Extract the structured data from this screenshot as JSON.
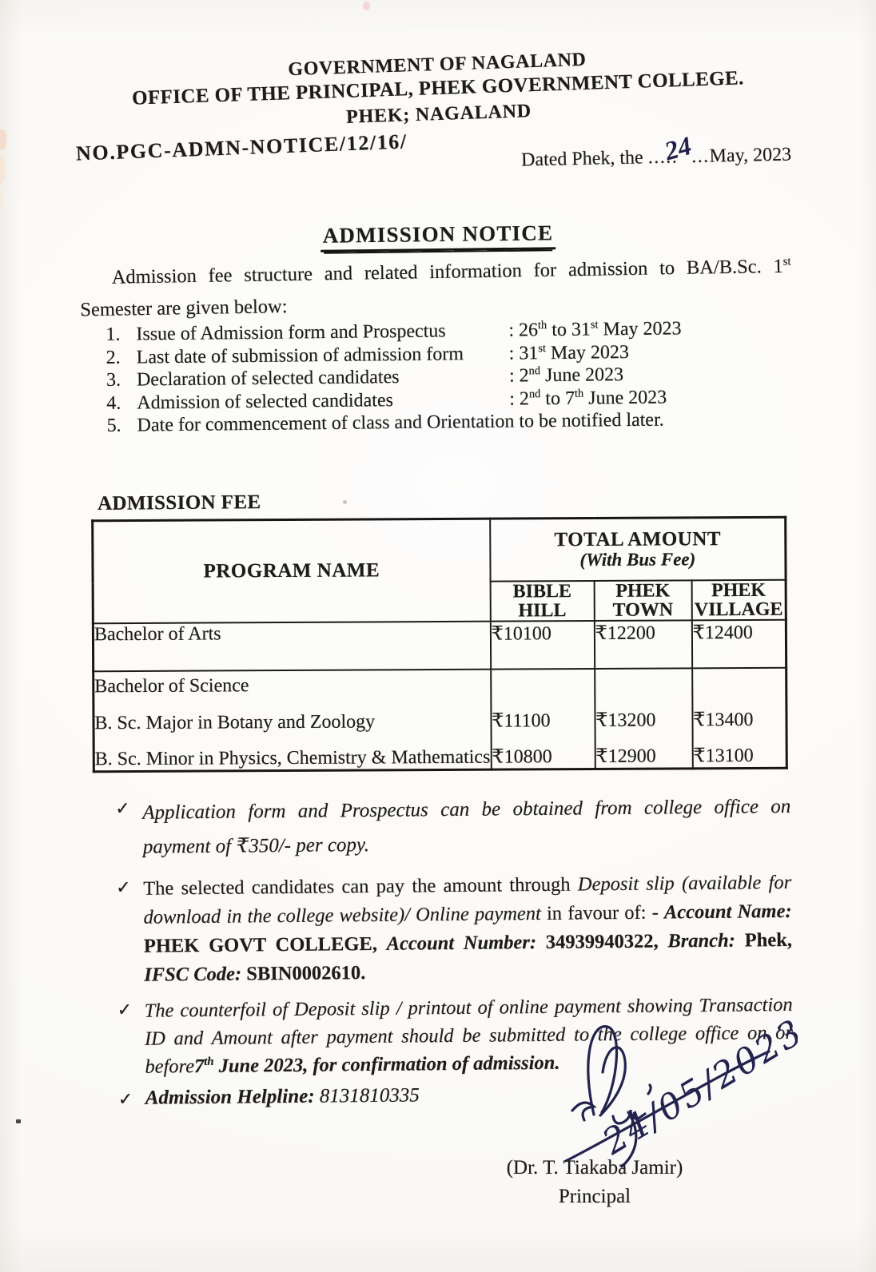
{
  "document": {
    "header": {
      "line1": "GOVERNMENT OF NAGALAND",
      "line2": "OFFICE OF THE PRINCIPAL, PHEK GOVERNMENT COLLEGE.",
      "line3": "PHEK; NAGALAND"
    },
    "reference": {
      "number": "NO.PGC-ADMN-NOTICE/12/16/",
      "date_prefix": "Dated Phek, the ",
      "date_dots_before": ".....",
      "date_day_handwritten": "24",
      "date_dots_after": "...",
      "date_suffix": "May, 2023"
    },
    "title": "ADMISSION NOTICE",
    "intro": [
      {
        "t": "Admission fee structure and related information for admission to BA/B.Sc. 1"
      },
      {
        "t": "st",
        "s": "sup"
      },
      {
        "t": " Semester are given below:"
      }
    ],
    "schedule": [
      {
        "num": "1.",
        "label": "Issue of Admission form and Prospectus",
        "value": [
          {
            "t": ": 26"
          },
          {
            "t": "th",
            "s": "sup"
          },
          {
            "t": " to 31"
          },
          {
            "t": "st",
            "s": "sup"
          },
          {
            "t": " May 2023"
          }
        ]
      },
      {
        "num": "2.",
        "label": "Last date of submission of admission form",
        "value": [
          {
            "t": ": 31"
          },
          {
            "t": "st",
            "s": "sup"
          },
          {
            "t": " May 2023"
          }
        ]
      },
      {
        "num": "3.",
        "label": "Declaration of selected candidates",
        "value": [
          {
            "t": ": 2"
          },
          {
            "t": "nd",
            "s": "sup"
          },
          {
            "t": " June 2023"
          }
        ]
      },
      {
        "num": "4.",
        "label": "Admission of selected candidates",
        "value": [
          {
            "t": ": 2"
          },
          {
            "t": "nd",
            "s": "sup"
          },
          {
            "t": " to 7"
          },
          {
            "t": "th",
            "s": "sup"
          },
          {
            "t": " June 2023"
          }
        ]
      },
      {
        "num": "5.",
        "label": "Date for commencement of class and Orientation to be notified later.",
        "value": []
      }
    ],
    "fee_section": {
      "heading": "ADMISSION FEE",
      "table": {
        "program_header": "PROGRAM NAME",
        "amount_header": "TOTAL AMOUNT",
        "amount_subheader": "(With Bus Fee)",
        "location_headers": [
          "BIBLE\nHILL",
          "PHEK\nTOWN",
          "PHEK\nVILLAGE"
        ],
        "row_arts": {
          "program": "Bachelor of Arts",
          "values": [
            "₹10100",
            "₹12200",
            "₹12400"
          ]
        },
        "row_science": {
          "group_label": "Bachelor of Science",
          "major_program": "B. Sc. Major in Botany and Zoology",
          "major_values": [
            "₹11100",
            "₹13200",
            "₹13400"
          ],
          "minor_program": "B. Sc. Minor in Physics, Chemistry & Mathematics",
          "minor_values": [
            "₹10800",
            "₹12900",
            "₹13100"
          ]
        }
      }
    },
    "notes": [
      {
        "mark": "✓",
        "segments": [
          {
            "t": "Application form and Prospectus can be obtained from college office on payment of ₹350/- per copy.",
            "s": "i"
          }
        ]
      },
      {
        "mark": "✓",
        "segments": [
          {
            "t": "The selected candidates can pay the amount through "
          },
          {
            "t": "Deposit slip (available for download in the college website)/ Online payment",
            "s": "i"
          },
          {
            "t": " in favour of: - "
          },
          {
            "t": "Account Name:",
            "s": "bi"
          },
          {
            "t": " "
          },
          {
            "t": "PHEK GOVT COLLEGE,",
            "s": "b"
          },
          {
            "t": " "
          },
          {
            "t": "Account Number:",
            "s": "bi"
          },
          {
            "t": " "
          },
          {
            "t": "34939940322,",
            "s": "b"
          },
          {
            "t": " "
          },
          {
            "t": "Branch:",
            "s": "bi"
          },
          {
            "t": " "
          },
          {
            "t": "Phek,",
            "s": "b"
          },
          {
            "t": " "
          },
          {
            "t": "IFSC Code:",
            "s": "bi"
          },
          {
            "t": " "
          },
          {
            "t": "SBIN0002610.",
            "s": "b"
          }
        ]
      },
      {
        "mark": "✓",
        "segments": [
          {
            "t": "The counterfoil of Deposit slip / printout of online payment showing Transaction ID and Amount after payment should be submitted to the college office on or before",
            "s": "i"
          },
          {
            "t": "7",
            "s": "bi"
          },
          {
            "t": "th",
            "s": "supbi"
          },
          {
            "t": " "
          },
          {
            "t": "June 2023, for confirmation of admission.",
            "s": "bi"
          }
        ]
      },
      {
        "mark": "✓",
        "segments": [
          {
            "t": "Admission Helpline:",
            "s": "bi"
          },
          {
            "t": " "
          },
          {
            "t": "8131810335",
            "s": "i"
          }
        ]
      }
    ],
    "signature": {
      "handwritten_date": "24/05/2023",
      "name": "(Dr. T. Tiakaba Jamir)",
      "role": "Principal"
    }
  }
}
